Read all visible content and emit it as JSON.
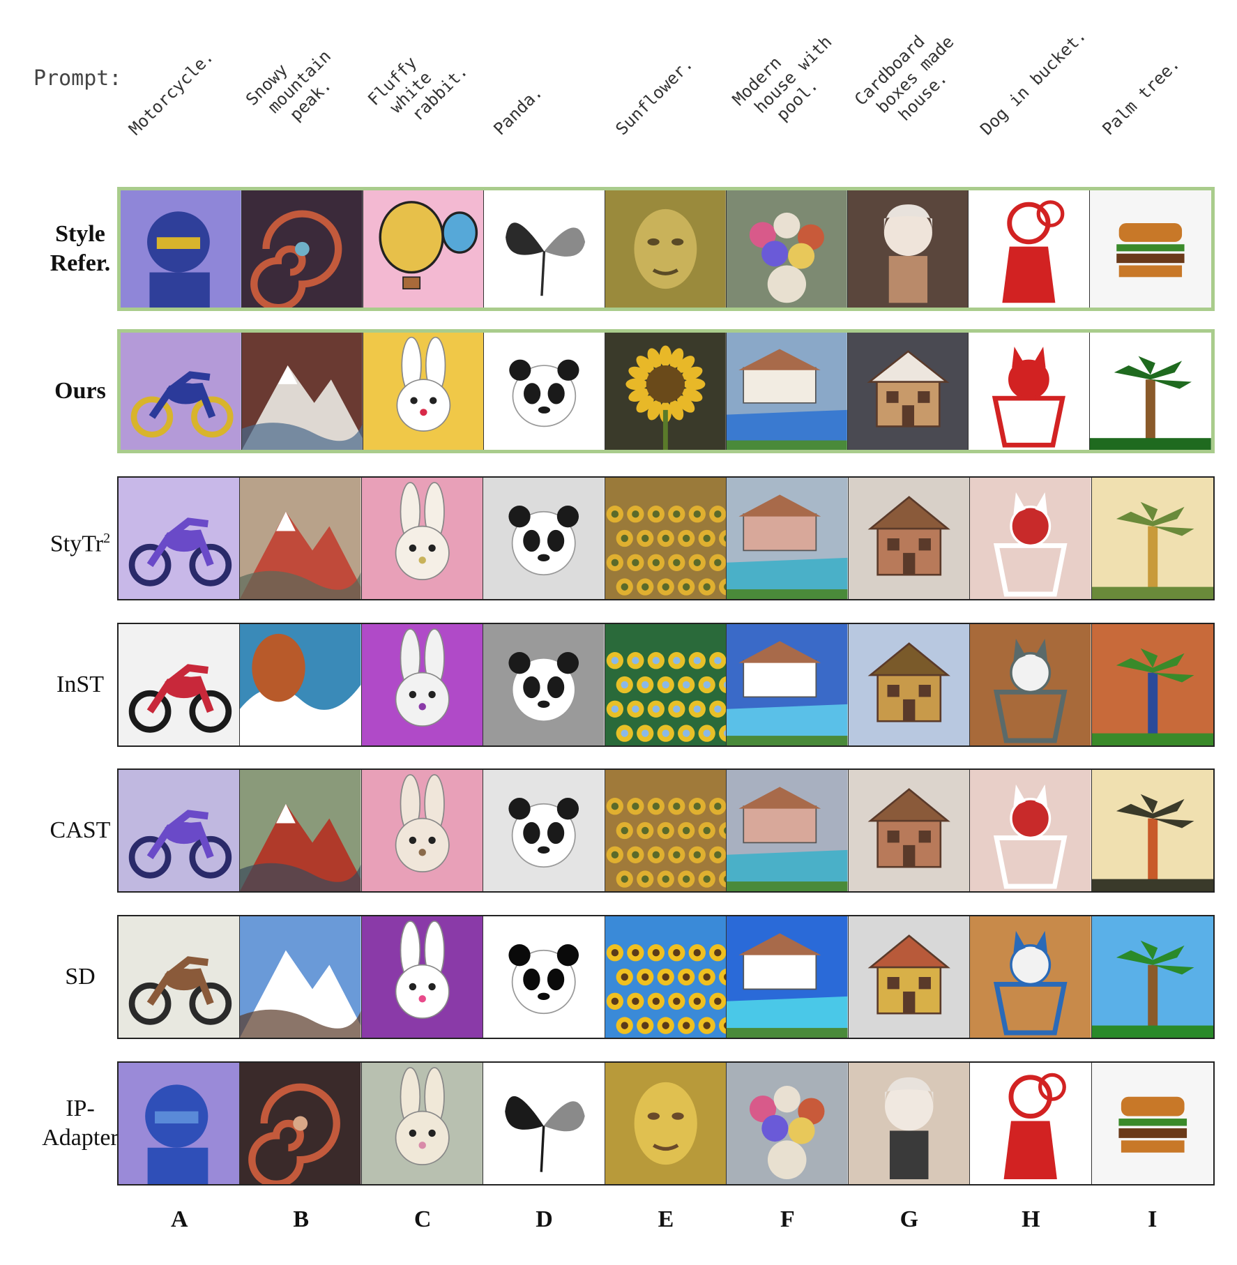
{
  "prompt_label": "Prompt:",
  "columns": [
    {
      "letter": "A",
      "prompt": "Motorcycle."
    },
    {
      "letter": "B",
      "prompt": "Snowy\n mountain\n  peak."
    },
    {
      "letter": "C",
      "prompt": "Fluffy\n white\n  rabbit."
    },
    {
      "letter": "D",
      "prompt": "Panda."
    },
    {
      "letter": "E",
      "prompt": "Sunflower."
    },
    {
      "letter": "F",
      "prompt": "Modern\n house with\n  pool."
    },
    {
      "letter": "G",
      "prompt": "Cardboard\n boxes made\n  house."
    },
    {
      "letter": "H",
      "prompt": "Dog in bucket."
    },
    {
      "letter": "I",
      "prompt": "Palm tree."
    }
  ],
  "rows": [
    {
      "label_lines": [
        "Style",
        "Refer."
      ],
      "bold": true,
      "highlight": true,
      "thumbs": [
        {
          "icon": "cyborg-portrait-icon",
          "bg": "#8f86d8",
          "fg": "#2f3f9a",
          "accent": "#d8b42c"
        },
        {
          "icon": "swirl-galaxy-icon",
          "bg": "#3b2a3a",
          "fg": "#c35a3c",
          "accent": "#6fb0c8"
        },
        {
          "icon": "hot-air-balloon-icon",
          "bg": "#f3b9d2",
          "fg": "#e7c04a",
          "accent": "#56a8d8"
        },
        {
          "icon": "ink-butterfly-icon",
          "bg": "#ffffff",
          "fg": "#2a2a2a",
          "accent": "#8a8a8a"
        },
        {
          "icon": "pointillist-face-icon",
          "bg": "#9a8a3c",
          "fg": "#5a4a26",
          "accent": "#c9b25a"
        },
        {
          "icon": "flower-vase-icon",
          "bg": "#7d8a72",
          "fg": "#e9e0d2",
          "accent": "#c85a3a"
        },
        {
          "icon": "doll-figure-icon",
          "bg": "#5a463c",
          "fg": "#efe4da",
          "accent": "#b98a6a"
        },
        {
          "icon": "paper-cut-figure-icon",
          "bg": "#ffffff",
          "fg": "#d22222",
          "accent": "#d22222"
        },
        {
          "icon": "pixel-burger-icon",
          "bg": "#f6f6f6",
          "fg": "#c87828",
          "accent": "#3a8a2a"
        }
      ]
    },
    {
      "label_lines": [
        "Ours"
      ],
      "bold": true,
      "highlight": true,
      "thumbs": [
        {
          "icon": "motorcycle-icon",
          "bg": "#b49ad8",
          "fg": "#2b3a9a",
          "accent": "#d8b42c"
        },
        {
          "icon": "mountain-icon",
          "bg": "#6a3a32",
          "fg": "#ded8d2",
          "accent": "#4a6a8a"
        },
        {
          "icon": "rabbit-icon",
          "bg": "#f0c848",
          "fg": "#ffffff",
          "accent": "#d82a48"
        },
        {
          "icon": "panda-icon",
          "bg": "#ffffff",
          "fg": "#1a1a1a",
          "accent": "#7a7a7a"
        },
        {
          "icon": "sunflower-icon",
          "bg": "#3a3a2a",
          "fg": "#e8b828",
          "accent": "#6a4a1a"
        },
        {
          "icon": "house-pool-icon",
          "bg": "#8aa8c8",
          "fg": "#f2ece2",
          "accent": "#3a7ad0"
        },
        {
          "icon": "box-house-icon",
          "bg": "#4a4a52",
          "fg": "#c89a6a",
          "accent": "#ede6de"
        },
        {
          "icon": "dog-bucket-icon",
          "bg": "#ffffff",
          "fg": "#d22222",
          "accent": "#d22222"
        },
        {
          "icon": "pixel-palm-icon",
          "bg": "#ffffff",
          "fg": "#1f6a1f",
          "accent": "#8a5a2a"
        }
      ]
    },
    {
      "label_lines": [
        "StyTr"
      ],
      "sup": "2",
      "bold": false,
      "highlight": false,
      "thumbs": [
        {
          "icon": "motorcycle-icon",
          "bg": "#c8b8e8",
          "fg": "#6a4ac8",
          "accent": "#2a2a6a"
        },
        {
          "icon": "mountain-icon",
          "bg": "#b8a28a",
          "fg": "#c04a3a",
          "accent": "#5a6a5a"
        },
        {
          "icon": "rabbit-icon",
          "bg": "#e8a0b8",
          "fg": "#f5efe6",
          "accent": "#c8b25a"
        },
        {
          "icon": "panda-icon",
          "bg": "#dcdcdc",
          "fg": "#1a1a1a",
          "accent": "#ffffff"
        },
        {
          "icon": "sunflower-field-icon",
          "bg": "#9a7a3a",
          "fg": "#e0b030",
          "accent": "#5a6a2a"
        },
        {
          "icon": "house-pool-icon",
          "bg": "#a8b8c8",
          "fg": "#d8a89a",
          "accent": "#4ab0c8"
        },
        {
          "icon": "box-house-icon",
          "bg": "#d8d0c8",
          "fg": "#b87a5a",
          "accent": "#8a5a3a"
        },
        {
          "icon": "dog-bucket-icon",
          "bg": "#e8cfc8",
          "fg": "#c82a2a",
          "accent": "#ffffff"
        },
        {
          "icon": "palm-icon",
          "bg": "#f0e0b0",
          "fg": "#6a8a3a",
          "accent": "#c89a3a"
        }
      ]
    },
    {
      "label_lines": [
        "InST"
      ],
      "bold": false,
      "highlight": false,
      "thumbs": [
        {
          "icon": "motorcycle-icon",
          "bg": "#f2f2f2",
          "fg": "#c8283a",
          "accent": "#1a1a1a"
        },
        {
          "icon": "wave-hair-icon",
          "bg": "#3a8ab8",
          "fg": "#b85a2a",
          "accent": "#ffffff"
        },
        {
          "icon": "rabbit-icon",
          "bg": "#b04ac8",
          "fg": "#f2f2f2",
          "accent": "#8a3aa8"
        },
        {
          "icon": "panda-icon",
          "bg": "#9a9a9a",
          "fg": "#1a1a1a",
          "accent": "#ffffff"
        },
        {
          "icon": "sunflower-field-icon",
          "bg": "#2a6a3a",
          "fg": "#e8c028",
          "accent": "#8ab8e8"
        },
        {
          "icon": "house-pool-icon",
          "bg": "#3a6ac8",
          "fg": "#ffffff",
          "accent": "#5ac0e8"
        },
        {
          "icon": "box-house-icon",
          "bg": "#b8c8e0",
          "fg": "#c89a4a",
          "accent": "#7a5a2a"
        },
        {
          "icon": "dog-bucket-icon",
          "bg": "#a86a3a",
          "fg": "#f2f2f2",
          "accent": "#5a6a6a"
        },
        {
          "icon": "pixel-palm-icon",
          "bg": "#c86a3a",
          "fg": "#3a8a2a",
          "accent": "#2a4a9a"
        }
      ]
    },
    {
      "label_lines": [
        "CAST"
      ],
      "bold": false,
      "highlight": false,
      "thumbs": [
        {
          "icon": "motorcycle-icon",
          "bg": "#c0b8e0",
          "fg": "#6a4ac8",
          "accent": "#2a2a6a"
        },
        {
          "icon": "mountain-icon",
          "bg": "#8a9a7a",
          "fg": "#b03a2a",
          "accent": "#3a4a5a"
        },
        {
          "icon": "rabbit-icon",
          "bg": "#e8a0b8",
          "fg": "#f0e6da",
          "accent": "#8a6a4a"
        },
        {
          "icon": "panda-icon",
          "bg": "#e4e4e4",
          "fg": "#1a1a1a",
          "accent": "#ffffff"
        },
        {
          "icon": "sunflower-field-icon",
          "bg": "#a07a3a",
          "fg": "#e0b030",
          "accent": "#5a6a2a"
        },
        {
          "icon": "house-pool-icon",
          "bg": "#a8b0c0",
          "fg": "#d8a89a",
          "accent": "#4ab0c8"
        },
        {
          "icon": "box-house-icon",
          "bg": "#dcd4cc",
          "fg": "#b87a5a",
          "accent": "#8a5a3a"
        },
        {
          "icon": "dog-bucket-icon",
          "bg": "#e8cfc8",
          "fg": "#c82a2a",
          "accent": "#ffffff"
        },
        {
          "icon": "palm-icon",
          "bg": "#f0e0b0",
          "fg": "#3a3a2a",
          "accent": "#c85a2a"
        }
      ]
    },
    {
      "label_lines": [
        "SD"
      ],
      "bold": false,
      "highlight": false,
      "thumbs": [
        {
          "icon": "motorcycle-icon",
          "bg": "#e8e8e0",
          "fg": "#8a5a3a",
          "accent": "#2a2a2a"
        },
        {
          "icon": "mountain-icon",
          "bg": "#6a9ad8",
          "fg": "#ffffff",
          "accent": "#5a3a2a"
        },
        {
          "icon": "rabbit-icon",
          "bg": "#8a3aa8",
          "fg": "#ffffff",
          "accent": "#e84a8a"
        },
        {
          "icon": "panda-icon",
          "bg": "#ffffff",
          "fg": "#0a0a0a",
          "accent": "#d8d8d8"
        },
        {
          "icon": "sunflower-field-icon",
          "bg": "#3a8ad8",
          "fg": "#f0c020",
          "accent": "#5a3a1a"
        },
        {
          "icon": "house-pool-icon",
          "bg": "#2a6ad8",
          "fg": "#ffffff",
          "accent": "#4ac8e8"
        },
        {
          "icon": "box-house-icon",
          "bg": "#d8d8d8",
          "fg": "#d8b048",
          "accent": "#b85a3a"
        },
        {
          "icon": "dog-bucket-icon",
          "bg": "#c88a4a",
          "fg": "#f2f2f2",
          "accent": "#2a6ab8"
        },
        {
          "icon": "pixel-palm-icon",
          "bg": "#5ab0e8",
          "fg": "#2a8a2a",
          "accent": "#8a5a2a"
        }
      ]
    },
    {
      "label_lines": [
        "IP-",
        "Adapter"
      ],
      "bold": false,
      "highlight": false,
      "thumbs": [
        {
          "icon": "cyborg-portrait-icon",
          "bg": "#9a8ad8",
          "fg": "#2f4fb8",
          "accent": "#5a8ad8"
        },
        {
          "icon": "swirl-galaxy-icon",
          "bg": "#3a2a2a",
          "fg": "#c35a3c",
          "accent": "#d8a888"
        },
        {
          "icon": "cartoon-rabbit-icon",
          "bg": "#b8c0b0",
          "fg": "#f0e8d8",
          "accent": "#d88aa8"
        },
        {
          "icon": "ink-butterfly-icon",
          "bg": "#ffffff",
          "fg": "#1a1a1a",
          "accent": "#8a8a8a"
        },
        {
          "icon": "pointillist-face-icon",
          "bg": "#b89a3a",
          "fg": "#6a4a2a",
          "accent": "#e0c050"
        },
        {
          "icon": "flower-vase-icon",
          "bg": "#a8b0b8",
          "fg": "#e9e0d2",
          "accent": "#c85a3a"
        },
        {
          "icon": "doll-figure-icon",
          "bg": "#d8c8b8",
          "fg": "#f0e8e0",
          "accent": "#3a3a3a"
        },
        {
          "icon": "paper-cut-figure-icon",
          "bg": "#ffffff",
          "fg": "#d22222",
          "accent": "#d22222"
        },
        {
          "icon": "pixel-burger-icon",
          "bg": "#f6f6f6",
          "fg": "#c87828",
          "accent": "#3a8a2a"
        }
      ]
    }
  ]
}
